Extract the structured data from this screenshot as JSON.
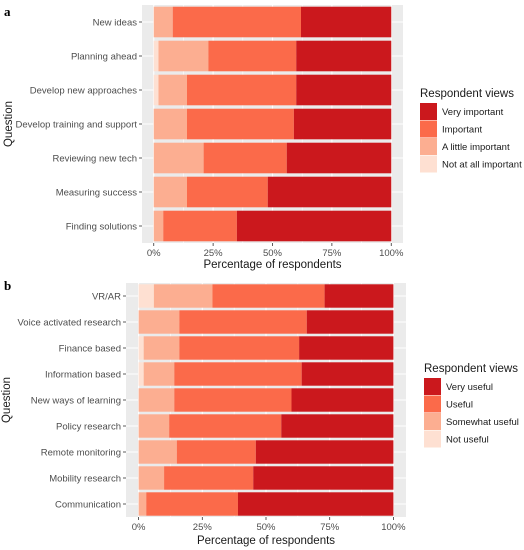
{
  "chart_data": [
    {
      "type": "bar",
      "orientation": "horizontal",
      "stacked": true,
      "panel_label": "a",
      "categories": [
        "New ideas",
        "Planning ahead",
        "Develop new approaches",
        "Develop training and support",
        "Reviewing new tech",
        "Measuring success",
        "Finding solutions"
      ],
      "series": [
        {
          "name": "Not at all important",
          "color": "#fee0d2",
          "values": [
            0.0,
            0.02,
            0.02,
            0.0,
            0.0,
            0.0,
            0.0
          ]
        },
        {
          "name": "A little important",
          "color": "#fcae91",
          "values": [
            0.08,
            0.21,
            0.12,
            0.14,
            0.21,
            0.14,
            0.04
          ]
        },
        {
          "name": "Important",
          "color": "#fb6a4a",
          "values": [
            0.54,
            0.37,
            0.46,
            0.45,
            0.35,
            0.34,
            0.31
          ]
        },
        {
          "name": "Very important",
          "color": "#cb181d",
          "values": [
            0.38,
            0.4,
            0.4,
            0.41,
            0.44,
            0.52,
            0.65
          ]
        }
      ],
      "xlabel": "Percentage of respondents",
      "ylabel": "Question",
      "xlim": [
        0,
        1
      ],
      "xticks": [
        "0%",
        "25%",
        "50%",
        "75%",
        "100%"
      ],
      "legend": {
        "title": "Respondent views",
        "position": "right",
        "items": [
          "Very important",
          "Important",
          "A little important",
          "Not at all important"
        ]
      }
    },
    {
      "type": "bar",
      "orientation": "horizontal",
      "stacked": true,
      "panel_label": "b",
      "categories": [
        "VR/AR",
        "Voice activated research",
        "Finance based",
        "Information based",
        "New ways of learning",
        "Policy research",
        "Remote monitoring",
        "Mobility research",
        "Communication"
      ],
      "series": [
        {
          "name": "Not useful",
          "color": "#fee0d2",
          "values": [
            0.06,
            0.0,
            0.02,
            0.02,
            0.0,
            0.0,
            0.0,
            0.0,
            0.0
          ]
        },
        {
          "name": "Somewhat useful",
          "color": "#fcae91",
          "values": [
            0.23,
            0.16,
            0.14,
            0.12,
            0.14,
            0.12,
            0.15,
            0.1,
            0.03
          ]
        },
        {
          "name": "Useful",
          "color": "#fb6a4a",
          "values": [
            0.44,
            0.5,
            0.47,
            0.5,
            0.46,
            0.44,
            0.31,
            0.35,
            0.36
          ]
        },
        {
          "name": "Very useful",
          "color": "#cb181d",
          "values": [
            0.27,
            0.34,
            0.37,
            0.36,
            0.4,
            0.44,
            0.54,
            0.55,
            0.61
          ]
        }
      ],
      "xlabel": "Percentage of respondents",
      "ylabel": "Question",
      "xlim": [
        0,
        1
      ],
      "xticks": [
        "0%",
        "25%",
        "50%",
        "75%",
        "100%"
      ],
      "legend": {
        "title": "Respondent views",
        "position": "right",
        "items": [
          "Very useful",
          "Useful",
          "Somewhat useful",
          "Not useful"
        ]
      }
    }
  ],
  "style": {
    "panel_bg": "#ebebeb",
    "grid": true,
    "grid_color": "#ffffff"
  }
}
